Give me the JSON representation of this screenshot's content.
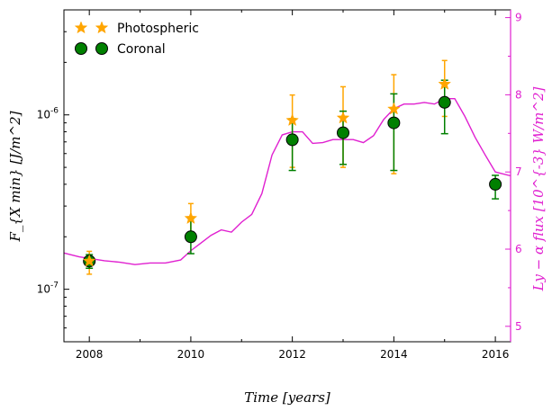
{
  "chart_data": {
    "type": "scatter",
    "xlabel": "Time   [years]",
    "ylabel": "F_{X min}   [J/m^2]",
    "ylabel_right": "Ly − α  flux  [10^{-3} W/m^2]",
    "xlim": [
      2007.5,
      2016.3
    ],
    "ylim": [
      5e-08,
      4e-06
    ],
    "yscale": "log",
    "ylim_right": [
      4.8,
      9.1
    ],
    "x_ticks": [
      2008,
      2010,
      2012,
      2014,
      2016
    ],
    "y_ticks": [
      {
        "value": 1e-07,
        "label": "10^-7"
      },
      {
        "value": 1e-06,
        "label": "10^-6"
      }
    ],
    "y_right_ticks": [
      5,
      6,
      7,
      8,
      9
    ],
    "legend_position": "upper-left",
    "colors": {
      "photospheric": "#ffa500",
      "coronal": "#008000",
      "coronal_err": "#008000",
      "lya": "#e020d0",
      "axis_right": "#e020d0"
    },
    "series": [
      {
        "name": "Photospheric",
        "marker": "star",
        "points": [
          {
            "x": 2008,
            "y": 1.45e-07,
            "err_low": 1.22e-07,
            "err_high": 1.65e-07
          },
          {
            "x": 2010,
            "y": 2.55e-07,
            "err_low": 2.05e-07,
            "err_high": 3.1e-07
          },
          {
            "x": 2012,
            "y": 9.3e-07,
            "err_low": 5e-07,
            "err_high": 1.3e-06
          },
          {
            "x": 2013,
            "y": 9.6e-07,
            "err_low": 5e-07,
            "err_high": 1.45e-06
          },
          {
            "x": 2014,
            "y": 1.08e-06,
            "err_low": 4.6e-07,
            "err_high": 1.7e-06
          },
          {
            "x": 2015,
            "y": 1.5e-06,
            "err_low": 9.8e-07,
            "err_high": 2.05e-06
          }
        ]
      },
      {
        "name": "Coronal",
        "marker": "circle",
        "points": [
          {
            "x": 2008,
            "y": 1.45e-07,
            "err_low": 1.32e-07,
            "err_high": 1.58e-07
          },
          {
            "x": 2010,
            "y": 2e-07,
            "err_low": 1.6e-07,
            "err_high": 2.55e-07
          },
          {
            "x": 2012,
            "y": 7.2e-07,
            "err_low": 4.8e-07,
            "err_high": 9.5e-07
          },
          {
            "x": 2013,
            "y": 7.9e-07,
            "err_low": 5.2e-07,
            "err_high": 1.05e-06
          },
          {
            "x": 2014,
            "y": 9e-07,
            "err_low": 4.8e-07,
            "err_high": 1.32e-06
          },
          {
            "x": 2015,
            "y": 1.18e-06,
            "err_low": 7.8e-07,
            "err_high": 1.58e-06
          },
          {
            "x": 2016,
            "y": 4e-07,
            "err_low": 3.3e-07,
            "err_high": 4.5e-07
          }
        ]
      }
    ],
    "lya_series": {
      "x": [
        2007.5,
        2007.8,
        2008.0,
        2008.3,
        2008.6,
        2008.9,
        2009.2,
        2009.5,
        2009.8,
        2010.0,
        2010.2,
        2010.4,
        2010.6,
        2010.8,
        2011.0,
        2011.2,
        2011.4,
        2011.6,
        2011.8,
        2012.0,
        2012.2,
        2012.4,
        2012.6,
        2012.8,
        2013.0,
        2013.2,
        2013.4,
        2013.6,
        2013.8,
        2014.0,
        2014.2,
        2014.4,
        2014.6,
        2014.8,
        2015.0,
        2015.2,
        2015.4,
        2015.6,
        2015.8,
        2016.0,
        2016.3
      ],
      "y": [
        5.95,
        5.9,
        5.88,
        5.85,
        5.83,
        5.8,
        5.82,
        5.82,
        5.86,
        5.98,
        6.08,
        6.18,
        6.25,
        6.22,
        6.35,
        6.45,
        6.72,
        7.22,
        7.48,
        7.52,
        7.52,
        7.37,
        7.38,
        7.42,
        7.42,
        7.42,
        7.38,
        7.47,
        7.68,
        7.82,
        7.88,
        7.88,
        7.9,
        7.88,
        7.95,
        7.95,
        7.72,
        7.45,
        7.22,
        7.0,
        6.95
      ]
    }
  }
}
